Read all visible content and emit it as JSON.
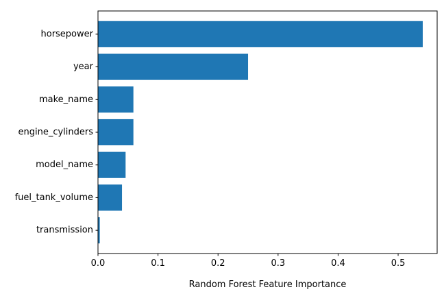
{
  "chart_data": {
    "type": "bar",
    "orientation": "horizontal",
    "categories": [
      "horsepower",
      "year",
      "make_name",
      "engine_cylinders",
      "model_name",
      "fuel_tank_volume",
      "transmission"
    ],
    "values": [
      0.541,
      0.25,
      0.059,
      0.059,
      0.046,
      0.04,
      0.003
    ],
    "xlabel": "Random Forest Feature Importance",
    "ylabel": "",
    "title": "",
    "xlim": [
      0.0,
      0.565
    ],
    "xticks": [
      "0.0",
      "0.1",
      "0.2",
      "0.3",
      "0.4",
      "0.5"
    ],
    "bar_color": "#1f77b4",
    "grid": false
  }
}
